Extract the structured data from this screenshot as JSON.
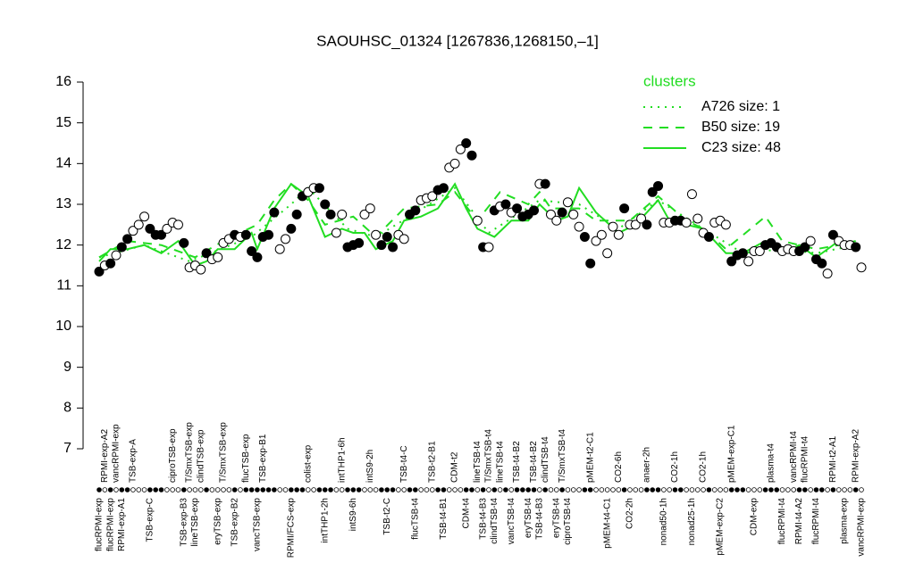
{
  "chart_data": {
    "type": "scatter",
    "title": "SAOUHSC_01324 [1267836,1268150,–1]",
    "ylim": [
      7,
      16
    ],
    "yticks": [
      7,
      8,
      9,
      10,
      11,
      12,
      13,
      14,
      15,
      16
    ],
    "categories": [
      "flucRPMI-exp",
      "RPMI-exp-A2",
      "flucRPMI-exp",
      "vancRPMI-exp",
      "RPMI-exp-A1",
      null,
      "TSB-exp-A",
      null,
      null,
      "TSB-exp-C",
      null,
      null,
      null,
      "ciproTSB-exp",
      null,
      "TSB-exp-B3",
      "T/SmxTSB-exp",
      "lineTSB-exp",
      "clindTSB-exp",
      null,
      null,
      "eryTSB-exp",
      "T/SmxTSB-exp",
      null,
      "TSB-exp-B2",
      null,
      "flucTSB-exp",
      null,
      "vancTSB-exp",
      "TSB-exp-B1",
      null,
      null,
      null,
      null,
      "RPMI/FCS-exp",
      null,
      null,
      "colist-exp",
      null,
      null,
      "intTHP1-2h",
      null,
      null,
      "intTHP1-6h",
      null,
      "intS9-6h",
      null,
      null,
      "intS9-2h",
      null,
      null,
      "TSB-t2-C",
      null,
      null,
      "TSB-t4-C",
      null,
      "flucTSB-t4",
      null,
      null,
      "TSB-t2-B1",
      null,
      "TSB-t4-B1",
      null,
      "CDM-t2",
      null,
      "CDM-t4",
      null,
      "lineTSB-t4",
      "TSB-t4-B3",
      "T/SmxTSB-t4",
      "clindTSB-t4",
      "lineTSB-t4",
      null,
      "vancTSB-t4",
      "TSB-t4-B2",
      null,
      "eryTSB-t4",
      "TSB-t4-B2",
      "TSB-t4-B3",
      "clindTSB-t4",
      null,
      "eryTSB-t4",
      "T/SmxTSB-t4",
      "ciproTSB-t4",
      null,
      null,
      null,
      "pMEM-t2-C1",
      null,
      null,
      "pMEM-t4-C1",
      null,
      "CO2-6h",
      null,
      "CO2-2h",
      null,
      null,
      "anaer-2h",
      null,
      null,
      "nonad50-1h",
      null,
      "CO2-1h",
      null,
      null,
      "nonad25-1h",
      null,
      "CO2-1h",
      null,
      null,
      "pMEM-exp-C2",
      null,
      "pMEM-exp-C1",
      null,
      null,
      null,
      "CDM-exp",
      null,
      null,
      "plasma-t4",
      null,
      "flucRPMI-t4",
      null,
      "vancRPMI-t4",
      "RPMI-t4-A2",
      "flucRPMI-t4",
      null,
      "flucRPMI-t4",
      null,
      null,
      "RPMI-t2-A1",
      null,
      "plasma-exp",
      null,
      "RPMI-exp-A2",
      "vancRPMI-exp"
    ],
    "values": [
      11.35,
      11.5,
      11.55,
      11.75,
      11.95,
      12.15,
      12.35,
      12.5,
      12.7,
      12.4,
      12.25,
      12.25,
      12.4,
      12.55,
      12.5,
      12.05,
      11.45,
      11.5,
      11.4,
      11.8,
      11.65,
      11.7,
      12.05,
      12.15,
      12.25,
      12.2,
      12.25,
      11.85,
      11.7,
      12.2,
      12.25,
      12.8,
      11.9,
      12.15,
      12.4,
      12.75,
      13.2,
      13.3,
      13.4,
      13.4,
      13.0,
      12.75,
      12.3,
      12.75,
      11.95,
      12.0,
      12.05,
      12.75,
      12.9,
      12.25,
      12.0,
      12.2,
      11.95,
      12.25,
      12.15,
      12.75,
      12.85,
      13.1,
      13.15,
      13.2,
      13.35,
      13.4,
      13.9,
      14.0,
      14.35,
      14.5,
      14.2,
      12.6,
      11.95,
      11.95,
      12.85,
      12.95,
      13.0,
      12.8,
      12.9,
      12.7,
      12.75,
      12.85,
      13.5,
      13.5,
      12.75,
      12.6,
      12.8,
      13.05,
      12.75,
      12.45,
      12.2,
      11.55,
      12.1,
      12.25,
      11.8,
      12.45,
      12.25,
      12.9,
      12.5,
      12.5,
      12.65,
      12.5,
      13.3,
      13.45,
      12.55,
      12.55,
      12.6,
      12.6,
      12.55,
      13.25,
      12.65,
      12.3,
      12.2,
      12.55,
      12.6,
      12.5,
      11.6,
      11.75,
      11.8,
      11.6,
      11.85,
      11.85,
      12.0,
      12.05,
      11.95,
      11.85,
      11.9,
      11.85,
      11.85,
      11.95,
      12.1,
      11.65,
      11.55,
      11.3,
      12.25,
      12.1,
      12.0,
      12.0,
      11.95,
      11.45
    ],
    "point_colors": [
      "black",
      "white",
      "black",
      "white",
      "black",
      "black",
      "white",
      "white",
      "white",
      "black",
      "black",
      "black",
      "white",
      "white",
      "white",
      "black",
      "white",
      "white",
      "white",
      "black",
      "white",
      "white",
      "white",
      "white",
      "black",
      "white",
      "black",
      "black",
      "black",
      "black",
      "black",
      "black",
      "white",
      "white",
      "black",
      "black",
      "black",
      "white",
      "white",
      "black",
      "black",
      "black",
      "white",
      "white",
      "black",
      "black",
      "black",
      "white",
      "white",
      "white",
      "black",
      "black",
      "black",
      "white",
      "white",
      "black",
      "black",
      "white",
      "white",
      "white",
      "black",
      "black",
      "white",
      "white",
      "white",
      "black",
      "black",
      "white",
      "black",
      "white",
      "black",
      "white",
      "black",
      "white",
      "black",
      "black",
      "black",
      "black",
      "white",
      "black",
      "white",
      "white",
      "black",
      "white",
      "white",
      "white",
      "black",
      "black",
      "white",
      "white",
      "white",
      "white",
      "white",
      "black",
      "white",
      "white",
      "white",
      "black",
      "black",
      "black",
      "white",
      "white",
      "black",
      "black",
      "white",
      "white",
      "white",
      "white",
      "black",
      "white",
      "white",
      "white",
      "black",
      "black",
      "black",
      "white",
      "white",
      "white",
      "black",
      "black",
      "black",
      "white",
      "white",
      "white",
      "black",
      "black",
      "white",
      "black",
      "black",
      "white",
      "black",
      "white",
      "white",
      "white",
      "black",
      "white"
    ],
    "legend_title": "clusters",
    "series": [
      {
        "name": "A726 size: 1",
        "color": "#22dd22",
        "style": "dotted",
        "x": [
          1,
          9,
          17,
          28,
          35,
          38,
          45,
          50,
          56,
          64,
          70,
          79,
          86,
          93,
          100,
          108,
          115,
          122,
          128,
          135
        ],
        "values": [
          11.7,
          12.0,
          11.6,
          12.2,
          13.0,
          13.4,
          12.4,
          12.2,
          12.7,
          13.4,
          12.3,
          13.1,
          13.0,
          12.4,
          13.1,
          12.4,
          11.8,
          11.9,
          11.8,
          12.0
        ]
      },
      {
        "name": "B50 size: 19",
        "color": "#22dd22",
        "style": "dashed",
        "x": [
          1,
          6,
          12,
          18,
          23,
          29,
          32,
          35,
          38,
          41,
          46,
          50,
          55,
          61,
          64,
          68,
          72,
          77,
          79,
          81,
          86,
          89,
          95,
          100,
          105,
          108,
          112,
          119,
          122,
          125,
          128,
          132,
          135
        ],
        "values": [
          11.7,
          12.1,
          12.0,
          11.7,
          12.1,
          12.5,
          13.1,
          13.5,
          13.1,
          12.5,
          12.7,
          12.2,
          12.9,
          13.0,
          13.3,
          12.6,
          13.3,
          13.0,
          13.3,
          12.9,
          12.9,
          12.6,
          12.6,
          13.2,
          12.6,
          12.4,
          11.9,
          12.7,
          12.1,
          12.0,
          11.9,
          12.0,
          12.1
        ]
      },
      {
        "name": "C23 size: 48",
        "color": "#22dd22",
        "style": "solid",
        "x": [
          1,
          3,
          6,
          9,
          12,
          15,
          18,
          20,
          22,
          25,
          28,
          29,
          32,
          35,
          38,
          41,
          44,
          46,
          48,
          50,
          53,
          55,
          58,
          61,
          64,
          66,
          68,
          71,
          74,
          77,
          79,
          82,
          84,
          86,
          89,
          93,
          96,
          100,
          102,
          105,
          108,
          112,
          115,
          119,
          122,
          125,
          128,
          132,
          135
        ],
        "values": [
          11.6,
          11.9,
          11.9,
          12.0,
          11.8,
          12.1,
          11.5,
          11.6,
          11.9,
          11.9,
          12.3,
          11.9,
          12.9,
          13.5,
          13.2,
          12.2,
          12.4,
          12.3,
          12.3,
          11.9,
          12.1,
          12.6,
          12.7,
          12.9,
          13.5,
          12.9,
          12.4,
          12.2,
          12.6,
          12.6,
          13.0,
          12.6,
          12.7,
          13.4,
          12.8,
          12.3,
          12.5,
          13.1,
          12.6,
          12.5,
          12.4,
          11.8,
          11.8,
          12.1,
          11.8,
          12.0,
          11.7,
          12.1,
          11.9
        ]
      }
    ]
  }
}
